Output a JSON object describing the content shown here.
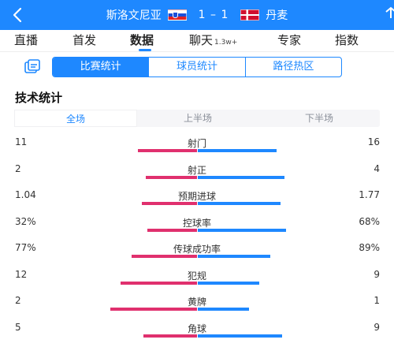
{
  "header": {
    "home_team": "斯洛文尼亚",
    "away_team": "丹麦",
    "score": "1 – 1",
    "icons": {
      "back": "back-arrow-icon",
      "home_flag": "slovenia-flag-icon",
      "away_flag": "denmark-flag-icon"
    }
  },
  "tabs": [
    {
      "label": "直播"
    },
    {
      "label": "首发"
    },
    {
      "label": "数据"
    },
    {
      "label": "聊天",
      "badge": "1.3w+"
    },
    {
      "label": "专家"
    },
    {
      "label": "指数"
    }
  ],
  "active_tab": "数据",
  "subtabs": [
    "比赛统计",
    "球员统计",
    "路径热区"
  ],
  "active_subtab": "比赛统计",
  "section": {
    "title": "技术统计",
    "periods": [
      "全场",
      "上半场",
      "下半场"
    ],
    "active_period": "全场"
  },
  "stats": [
    {
      "name": "射门",
      "home": "11",
      "away": "16",
      "home_value": 11,
      "away_value": 16
    },
    {
      "name": "射正",
      "home": "2",
      "away": "4",
      "home_value": 2,
      "away_value": 4
    },
    {
      "name": "预期进球",
      "home": "1.04",
      "away": "1.77",
      "home_value": 1.04,
      "away_value": 1.77
    },
    {
      "name": "控球率",
      "home": "32%",
      "away": "68%",
      "home_value": 32,
      "away_value": 68
    },
    {
      "name": "传球成功率",
      "home": "77%",
      "away": "89%",
      "home_value": 77,
      "away_value": 89
    },
    {
      "name": "犯规",
      "home": "12",
      "away": "9",
      "home_value": 12,
      "away_value": 9
    },
    {
      "name": "黄牌",
      "home": "2",
      "away": "1",
      "home_value": 2,
      "away_value": 1
    },
    {
      "name": "角球",
      "home": "5",
      "away": "9",
      "home_value": 5,
      "away_value": 9
    }
  ],
  "colors": {
    "accent": "#1e88ff",
    "home_bar": "#e0306e",
    "away_bar": "#1e88ff"
  }
}
